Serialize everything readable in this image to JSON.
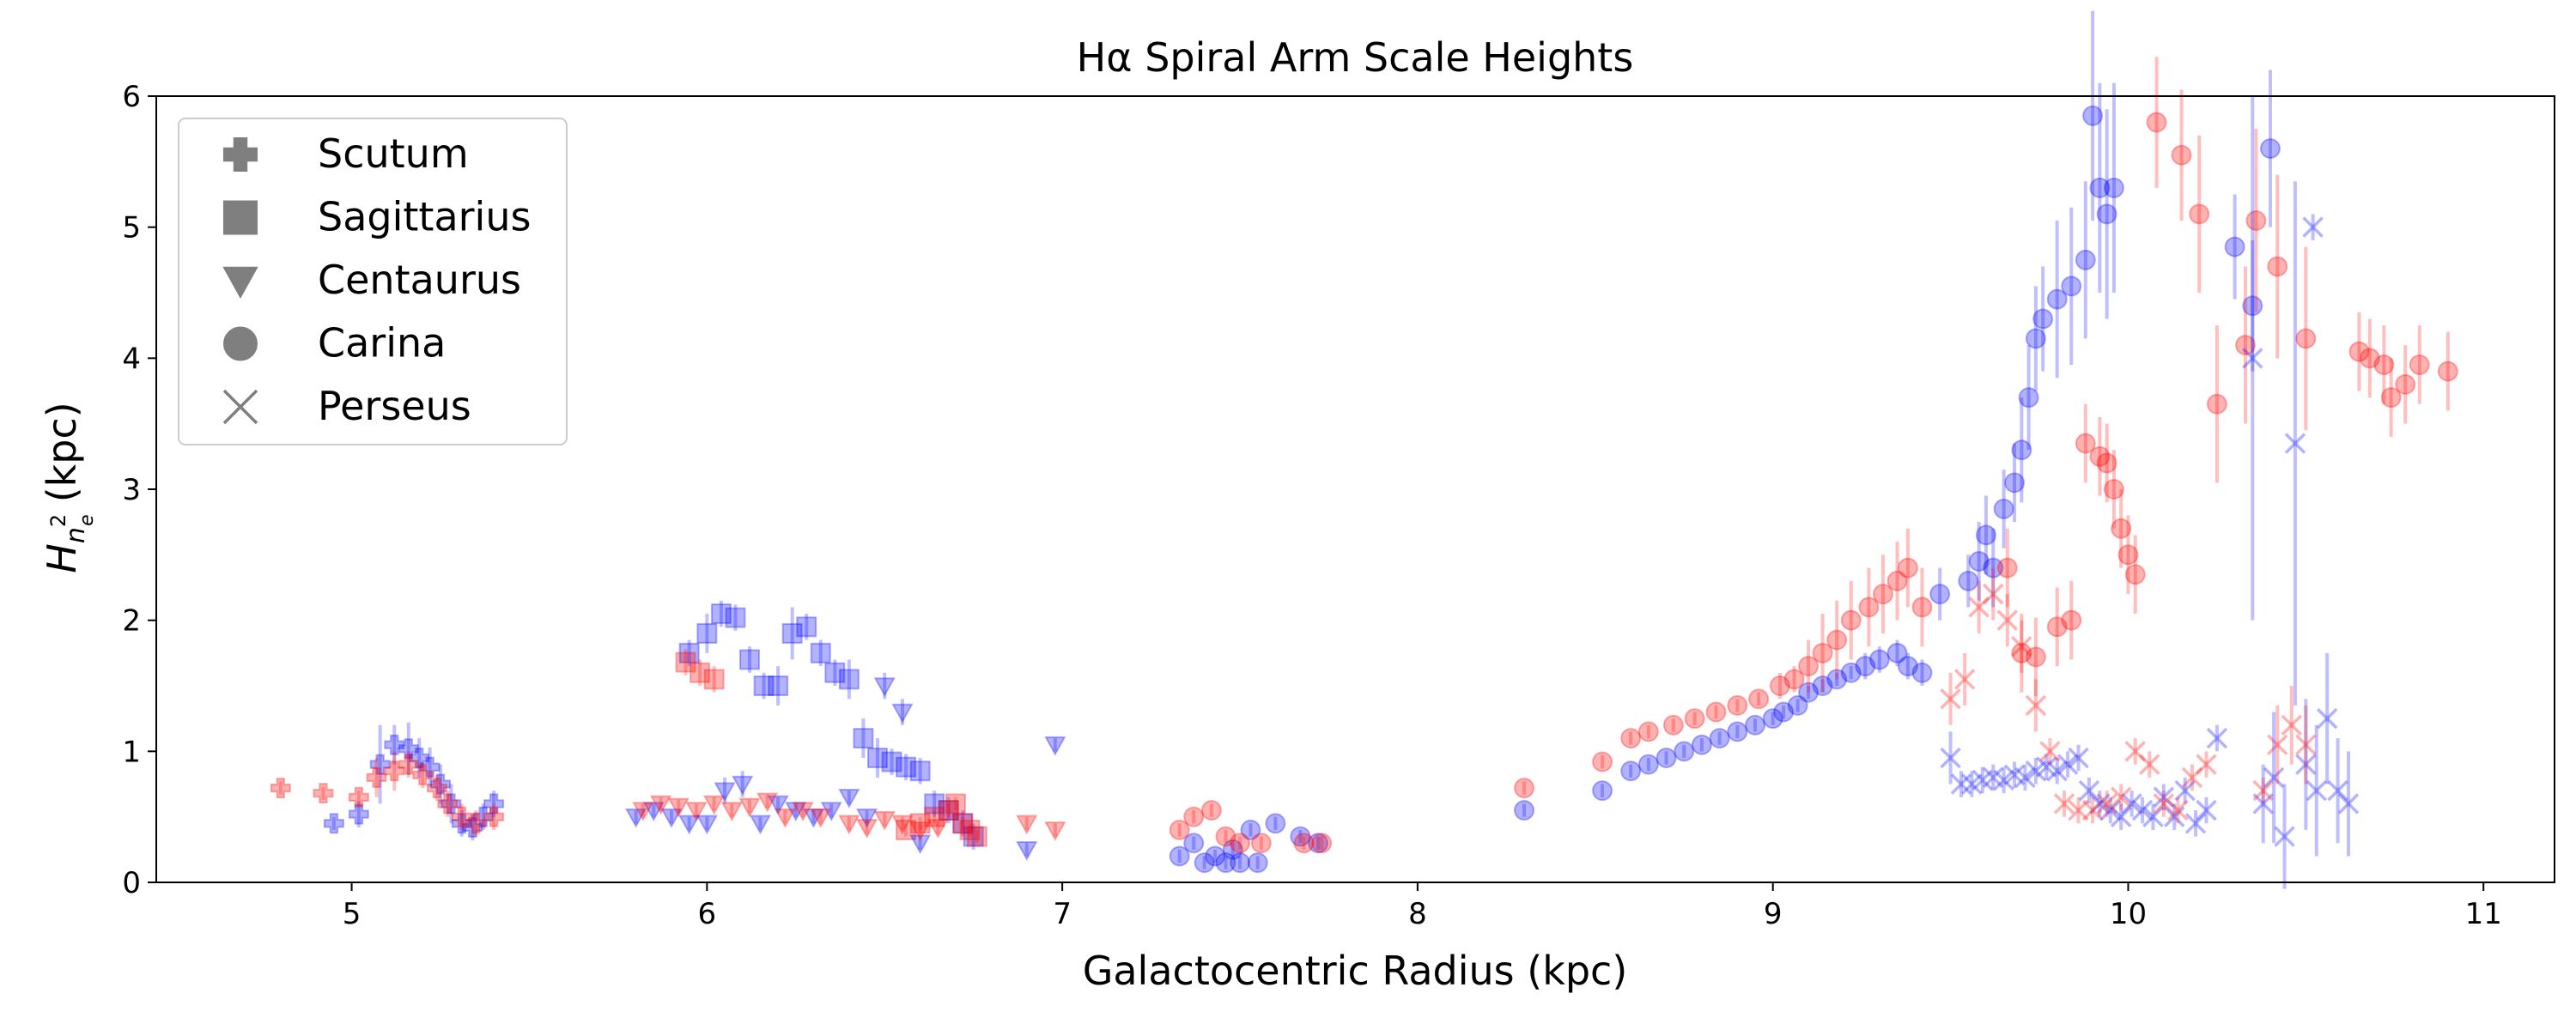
{
  "chart_data": {
    "type": "scatter",
    "title": "Hα Spiral Arm Scale Heights",
    "xlabel": "Galactocentric Radius (kpc)",
    "ylabel_main": "H",
    "ylabel_sub": "n",
    "ylabel_subsub": "e",
    "ylabel_sup": "2",
    "ylabel_unit": "(kpc)",
    "xlim": [
      4.45,
      11.2
    ],
    "ylim": [
      0,
      6
    ],
    "xticks": [
      5,
      6,
      7,
      8,
      9,
      10,
      11
    ],
    "yticks": [
      0,
      1,
      2,
      3,
      4,
      5,
      6
    ],
    "grid": false,
    "legend_position": "top-left",
    "colors": {
      "blue": "#0000ff",
      "red": "#ff0000",
      "legend_marker": "#7f7f7f"
    },
    "legend": [
      {
        "name": "Scutum",
        "marker": "plus"
      },
      {
        "name": "Sagittarius",
        "marker": "square"
      },
      {
        "name": "Centaurus",
        "marker": "triangle-down"
      },
      {
        "name": "Carina",
        "marker": "circle"
      },
      {
        "name": "Perseus",
        "marker": "x"
      }
    ],
    "series": [
      {
        "arm": "Scutum",
        "color": "blue",
        "marker": "plus",
        "x": [
          4.95,
          5.02,
          5.08,
          5.12,
          5.16,
          5.19,
          5.22,
          5.25,
          5.28,
          5.31,
          5.34,
          5.37,
          5.4
        ],
        "y": [
          0.45,
          0.52,
          0.9,
          1.05,
          1.02,
          0.95,
          0.88,
          0.75,
          0.6,
          0.45,
          0.42,
          0.5,
          0.6
        ],
        "err": [
          0.05,
          0.1,
          0.3,
          0.15,
          0.2,
          0.15,
          0.15,
          0.15,
          0.15,
          0.1,
          0.1,
          0.1,
          0.1
        ]
      },
      {
        "arm": "Scutum",
        "color": "red",
        "marker": "plus",
        "x": [
          4.8,
          4.92,
          5.02,
          5.07,
          5.12,
          5.16,
          5.2,
          5.24,
          5.27,
          5.31,
          5.35,
          5.4
        ],
        "y": [
          0.72,
          0.68,
          0.65,
          0.8,
          0.85,
          0.9,
          0.82,
          0.72,
          0.6,
          0.5,
          0.45,
          0.5
        ],
        "err": [
          0.05,
          0.05,
          0.05,
          0.15,
          0.15,
          0.1,
          0.1,
          0.1,
          0.1,
          0.1,
          0.1,
          0.1
        ]
      },
      {
        "arm": "Sagittarius",
        "color": "blue",
        "marker": "square",
        "x": [
          5.95,
          6.0,
          6.04,
          6.08,
          6.12,
          6.16,
          6.2,
          6.24,
          6.28,
          6.32,
          6.36,
          6.4,
          6.44,
          6.48,
          6.52,
          6.56,
          6.6,
          6.64,
          6.68,
          6.72,
          6.75
        ],
        "y": [
          1.75,
          1.9,
          2.05,
          2.02,
          1.7,
          1.5,
          1.5,
          1.9,
          1.95,
          1.75,
          1.6,
          1.55,
          1.1,
          0.95,
          0.92,
          0.88,
          0.85,
          0.6,
          0.55,
          0.45,
          0.35
        ],
        "err": [
          0.1,
          0.15,
          0.1,
          0.1,
          0.1,
          0.1,
          0.15,
          0.2,
          0.1,
          0.1,
          0.1,
          0.15,
          0.15,
          0.15,
          0.1,
          0.1,
          0.1,
          0.1,
          0.1,
          0.1,
          0.1
        ]
      },
      {
        "arm": "Sagittarius",
        "color": "red",
        "marker": "square",
        "x": [
          5.94,
          5.98,
          6.02,
          6.56,
          6.6,
          6.64,
          6.68,
          6.7,
          6.72,
          6.74,
          6.76
        ],
        "y": [
          1.68,
          1.6,
          1.55,
          0.4,
          0.45,
          0.5,
          0.55,
          0.6,
          0.45,
          0.4,
          0.35
        ],
        "err": [
          0.1,
          0.1,
          0.1,
          0.05,
          0.05,
          0.05,
          0.05,
          0.05,
          0.05,
          0.05,
          0.05
        ]
      },
      {
        "arm": "Centaurus",
        "color": "blue",
        "marker": "triangle-down",
        "x": [
          5.8,
          5.85,
          5.9,
          5.95,
          6.0,
          6.05,
          6.1,
          6.15,
          6.2,
          6.25,
          6.3,
          6.35,
          6.4,
          6.45,
          6.5,
          6.55,
          6.6,
          6.9,
          6.98
        ],
        "y": [
          0.5,
          0.55,
          0.5,
          0.45,
          0.45,
          0.7,
          0.75,
          0.45,
          0.6,
          0.55,
          0.5,
          0.55,
          0.65,
          0.5,
          1.5,
          1.3,
          0.3,
          0.25,
          1.05
        ],
        "err": [
          0.05,
          0.05,
          0.05,
          0.05,
          0.05,
          0.1,
          0.1,
          0.05,
          0.05,
          0.05,
          0.05,
          0.05,
          0.05,
          0.05,
          0.1,
          0.1,
          0.05,
          0.05,
          0.05
        ]
      },
      {
        "arm": "Centaurus",
        "color": "red",
        "marker": "triangle-down",
        "x": [
          5.82,
          5.87,
          5.92,
          5.97,
          6.02,
          6.07,
          6.12,
          6.17,
          6.22,
          6.27,
          6.32,
          6.4,
          6.45,
          6.5,
          6.55,
          6.6,
          6.65,
          6.9,
          6.98
        ],
        "y": [
          0.55,
          0.6,
          0.58,
          0.55,
          0.6,
          0.55,
          0.58,
          0.62,
          0.5,
          0.55,
          0.5,
          0.45,
          0.42,
          0.48,
          0.45,
          0.4,
          0.42,
          0.45,
          0.4
        ],
        "err": [
          0.05,
          0.05,
          0.05,
          0.05,
          0.05,
          0.05,
          0.05,
          0.05,
          0.05,
          0.05,
          0.05,
          0.05,
          0.05,
          0.05,
          0.05,
          0.05,
          0.05,
          0.05,
          0.05
        ]
      },
      {
        "arm": "Carina",
        "color": "blue",
        "marker": "circle",
        "x": [
          7.33,
          7.37,
          7.4,
          7.43,
          7.46,
          7.48,
          7.5,
          7.53,
          7.55,
          7.6,
          7.67,
          7.72,
          8.3,
          8.52,
          8.6,
          8.65,
          8.7,
          8.75,
          8.8,
          8.85,
          8.9,
          8.95,
          9.0,
          9.03,
          9.07,
          9.1,
          9.14,
          9.18,
          9.22,
          9.26,
          9.3,
          9.35,
          9.38,
          9.42,
          9.47,
          9.55,
          9.58,
          9.6,
          9.62,
          9.65,
          9.68,
          9.7,
          9.72,
          9.74,
          9.76,
          9.8,
          9.84,
          9.88,
          9.9,
          9.92,
          9.94,
          9.96,
          10.3,
          10.35,
          10.4
        ],
        "y": [
          0.2,
          0.3,
          0.15,
          0.2,
          0.15,
          0.25,
          0.15,
          0.4,
          0.15,
          0.45,
          0.35,
          0.3,
          0.55,
          0.7,
          0.85,
          0.9,
          0.95,
          1.0,
          1.05,
          1.1,
          1.15,
          1.2,
          1.25,
          1.3,
          1.35,
          1.45,
          1.5,
          1.55,
          1.6,
          1.65,
          1.7,
          1.75,
          1.65,
          1.6,
          2.2,
          2.3,
          2.45,
          2.65,
          2.4,
          2.85,
          3.05,
          3.3,
          3.7,
          4.15,
          4.3,
          4.45,
          4.55,
          4.75,
          5.85,
          5.3,
          5.1,
          5.3,
          4.85,
          4.4,
          5.6
        ],
        "err": [
          0.05,
          0.05,
          0.05,
          0.05,
          0.05,
          0.05,
          0.05,
          0.05,
          0.05,
          0.05,
          0.05,
          0.05,
          0.05,
          0.05,
          0.05,
          0.05,
          0.05,
          0.05,
          0.05,
          0.05,
          0.05,
          0.05,
          0.05,
          0.05,
          0.05,
          0.05,
          0.05,
          0.05,
          0.05,
          0.1,
          0.1,
          0.1,
          0.1,
          0.1,
          0.2,
          0.2,
          0.3,
          0.3,
          0.3,
          0.3,
          0.3,
          0.4,
          0.4,
          0.4,
          0.4,
          0.6,
          0.6,
          0.6,
          0.8,
          0.8,
          0.8,
          0.8,
          0.4,
          0.5,
          0.6
        ]
      },
      {
        "arm": "Carina",
        "color": "red",
        "marker": "circle",
        "x": [
          7.33,
          7.37,
          7.42,
          7.46,
          7.5,
          7.56,
          7.68,
          7.73,
          8.3,
          8.52,
          8.6,
          8.65,
          8.72,
          8.78,
          8.84,
          8.9,
          8.96,
          9.02,
          9.06,
          9.1,
          9.14,
          9.18,
          9.22,
          9.27,
          9.31,
          9.35,
          9.38,
          9.42,
          9.66,
          9.7,
          9.74,
          9.8,
          9.84,
          9.88,
          9.92,
          9.94,
          9.96,
          9.98,
          10.0,
          10.02,
          10.08,
          10.15,
          10.2,
          10.25,
          10.33,
          10.36,
          10.42,
          10.5,
          10.65,
          10.68,
          10.72,
          10.74,
          10.78,
          10.82,
          10.9
        ],
        "y": [
          0.4,
          0.5,
          0.55,
          0.35,
          0.3,
          0.3,
          0.3,
          0.3,
          0.72,
          0.92,
          1.1,
          1.15,
          1.2,
          1.25,
          1.3,
          1.35,
          1.4,
          1.5,
          1.55,
          1.65,
          1.75,
          1.85,
          2.0,
          2.1,
          2.2,
          2.3,
          2.4,
          2.1,
          2.4,
          1.75,
          1.72,
          1.95,
          2.0,
          3.35,
          3.25,
          3.2,
          3.0,
          2.7,
          2.5,
          2.35,
          5.8,
          5.55,
          5.1,
          3.65,
          4.1,
          5.05,
          4.7,
          4.15,
          4.05,
          4.0,
          3.95,
          3.7,
          3.8,
          3.95,
          3.9
        ],
        "err": [
          0.05,
          0.05,
          0.05,
          0.05,
          0.05,
          0.05,
          0.05,
          0.05,
          0.05,
          0.05,
          0.05,
          0.05,
          0.05,
          0.05,
          0.05,
          0.05,
          0.05,
          0.1,
          0.1,
          0.2,
          0.3,
          0.3,
          0.3,
          0.3,
          0.3,
          0.3,
          0.3,
          0.3,
          0.3,
          0.3,
          0.3,
          0.3,
          0.3,
          0.3,
          0.3,
          0.3,
          0.3,
          0.3,
          0.3,
          0.3,
          0.5,
          0.5,
          0.6,
          0.6,
          0.6,
          0.7,
          0.7,
          0.7,
          0.3,
          0.3,
          0.3,
          0.3,
          0.3,
          0.3,
          0.3
        ]
      },
      {
        "arm": "Perseus",
        "color": "blue",
        "marker": "x",
        "x": [
          9.5,
          9.53,
          9.56,
          9.59,
          9.62,
          9.65,
          9.68,
          9.71,
          9.74,
          9.77,
          9.8,
          9.83,
          9.86,
          9.89,
          9.92,
          9.95,
          9.98,
          10.01,
          10.04,
          10.07,
          10.1,
          10.13,
          10.16,
          10.19,
          10.22,
          10.25,
          10.35,
          10.38,
          10.41,
          10.44,
          10.47,
          10.5,
          10.53,
          10.56,
          10.59,
          10.62
        ],
        "y": [
          0.95,
          0.75,
          0.75,
          0.78,
          0.8,
          0.78,
          0.82,
          0.8,
          0.85,
          0.88,
          0.85,
          0.9,
          0.95,
          0.7,
          0.6,
          0.55,
          0.5,
          0.6,
          0.55,
          0.5,
          0.65,
          0.5,
          0.7,
          0.45,
          0.55,
          1.1,
          4.0,
          0.6,
          0.8,
          0.35,
          3.35,
          0.9,
          0.7,
          1.25,
          0.7,
          0.6
        ],
        "err": [
          0.2,
          0.1,
          0.1,
          0.1,
          0.1,
          0.1,
          0.1,
          0.1,
          0.1,
          0.1,
          0.1,
          0.1,
          0.1,
          0.1,
          0.1,
          0.1,
          0.1,
          0.1,
          0.1,
          0.1,
          0.1,
          0.1,
          0.1,
          0.1,
          0.1,
          0.1,
          2.0,
          0.3,
          0.5,
          0.4,
          2.0,
          0.5,
          0.5,
          0.5,
          0.4,
          0.4
        ]
      },
      {
        "arm": "Perseus",
        "color": "red",
        "marker": "x",
        "x": [
          9.5,
          9.54,
          9.58,
          9.62,
          9.66,
          9.7,
          9.74,
          9.78,
          9.82,
          9.86,
          9.9,
          9.94,
          9.98,
          10.02,
          10.06,
          10.1,
          10.14,
          10.18,
          10.22,
          10.38,
          10.42,
          10.46,
          10.5
        ],
        "y": [
          1.4,
          1.55,
          2.1,
          2.2,
          2.0,
          1.8,
          1.35,
          1.0,
          0.6,
          0.55,
          0.55,
          0.6,
          0.65,
          1.0,
          0.9,
          0.6,
          0.55,
          0.8,
          0.9,
          0.7,
          1.05,
          1.2,
          1.05
        ],
        "err": [
          0.2,
          0.2,
          0.2,
          0.2,
          0.2,
          0.2,
          0.2,
          0.1,
          0.1,
          0.1,
          0.1,
          0.1,
          0.1,
          0.1,
          0.1,
          0.1,
          0.1,
          0.1,
          0.1,
          0.1,
          0.3,
          0.3,
          0.3
        ]
      },
      {
        "arm": "Perseus",
        "color": "blue",
        "marker": "x",
        "x": [
          10.52
        ],
        "y": [
          5.0
        ],
        "err": [
          0.1
        ]
      }
    ]
  }
}
